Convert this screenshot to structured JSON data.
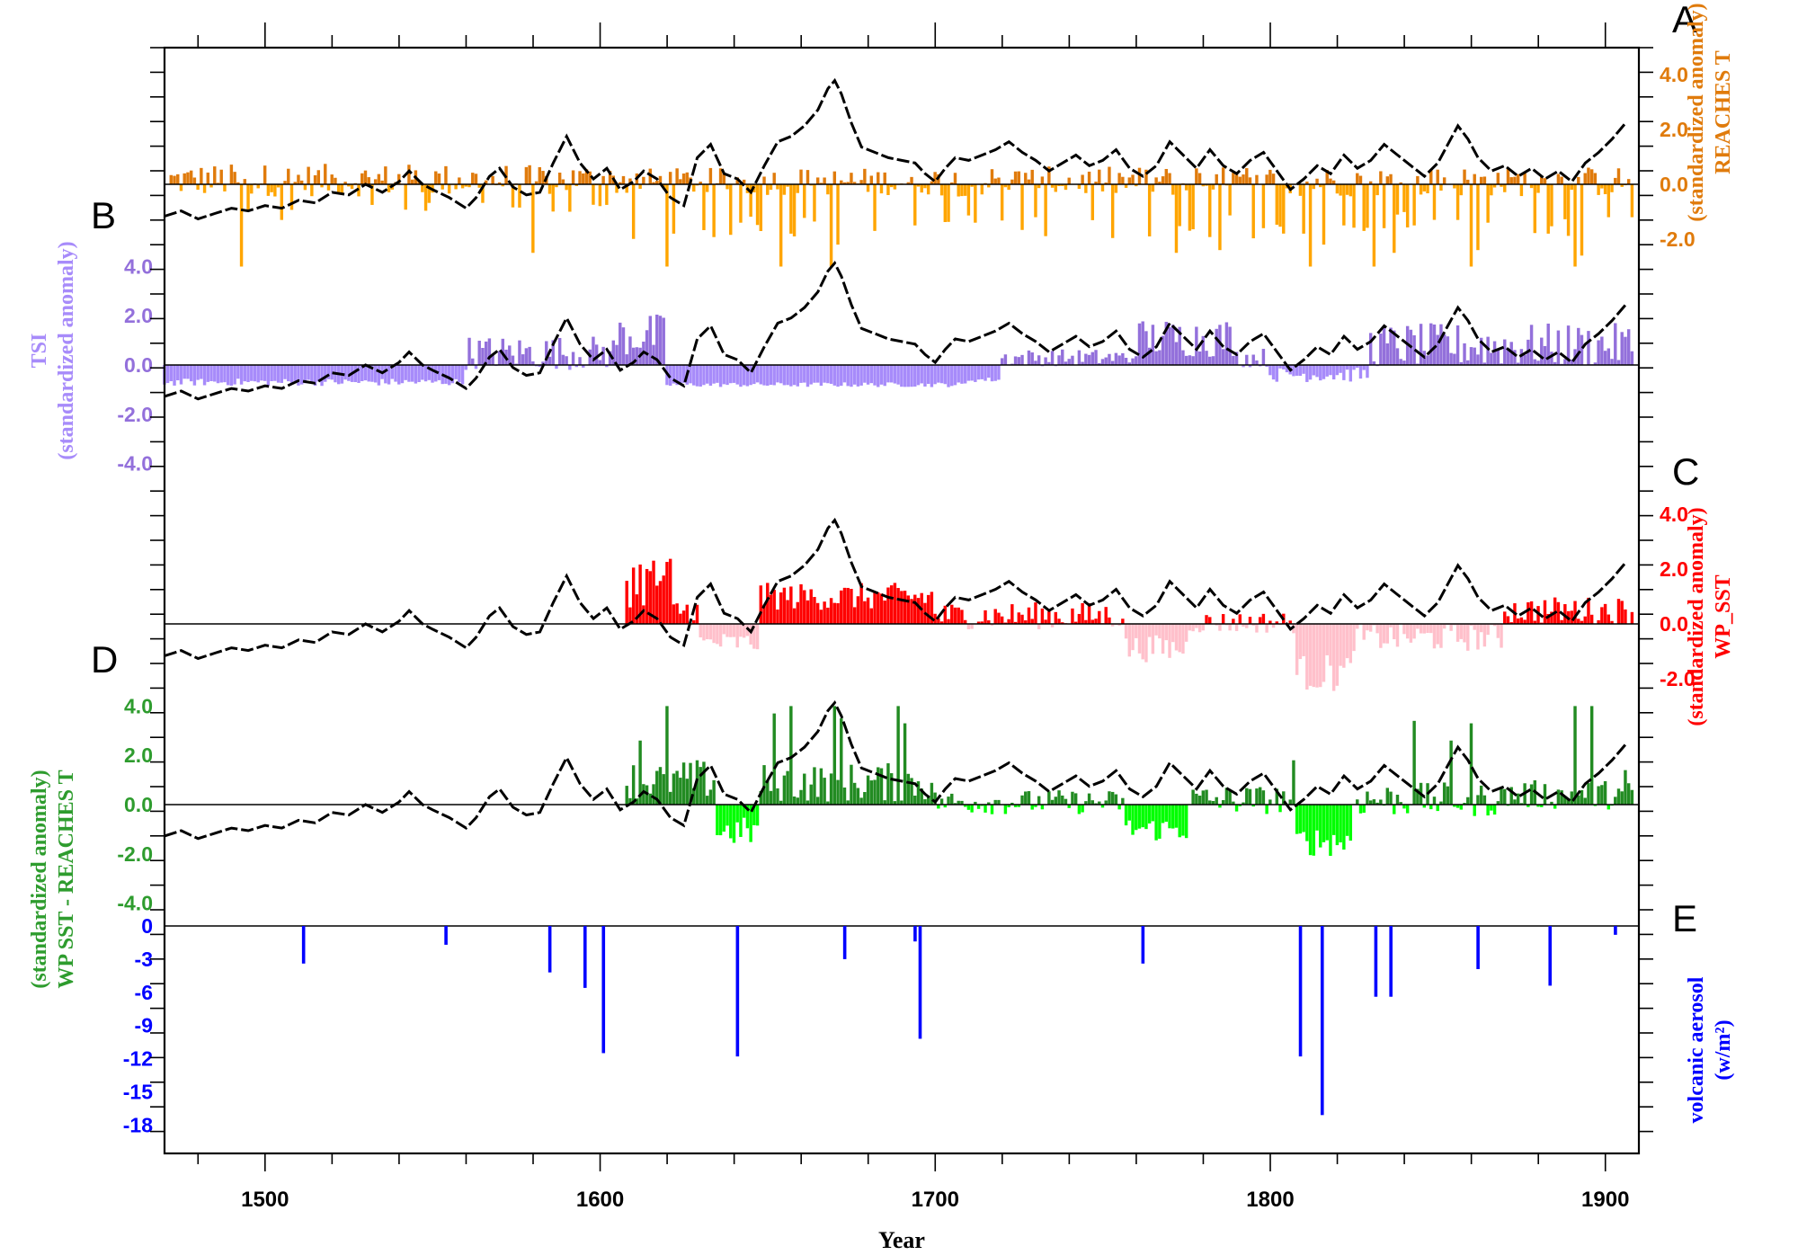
{
  "figure": {
    "x_axis_label": "Year",
    "x_ticks": [
      1500,
      1600,
      1700,
      1800,
      1900
    ],
    "x_range": [
      1470,
      1910
    ]
  },
  "colors": {
    "reaches_pos": "#e07b0c",
    "reaches_neg": "#ffa500",
    "tsi_pos": "#9370db",
    "tsi_neg": "#a78bfa",
    "sst_pos": "#ff0000",
    "sst_neg": "#ffc0cb",
    "diff_pos": "#228b22",
    "diff_neg": "#00ff00",
    "volcanic": "#0000ff",
    "curve": "#000000"
  },
  "chart_data": [
    {
      "panel": "A",
      "type": "bar",
      "series_label": "REACHES T",
      "unit_label": "(standardized anomaly)",
      "axis_side": "right",
      "ticks": [
        "4.0",
        "2.0",
        "0.0",
        "-2.0"
      ],
      "tick_values": [
        4,
        2,
        0,
        -2
      ],
      "ylim": [
        -3.1,
        6.4
      ],
      "x_start": 1472,
      "x_end": 1909,
      "segments": [
        [
          1472,
          1610,
          0.15,
          0.6,
          -1.2,
          0.5
        ],
        [
          1610,
          1700,
          0.1,
          0.5,
          -2.0,
          0.6
        ],
        [
          1700,
          1909,
          0.1,
          0.55,
          -2.0,
          0.6
        ]
      ],
      "events": [
        [
          1493,
          -3.0
        ],
        [
          1505,
          -1.3
        ],
        [
          1580,
          -2.5
        ],
        [
          1591,
          -1.0
        ],
        [
          1620,
          -3.0
        ],
        [
          1622,
          -1.8
        ],
        [
          1642,
          -1.4
        ],
        [
          1654,
          -3.0
        ],
        [
          1657,
          -1.8
        ],
        [
          1669,
          -3.0
        ],
        [
          1671,
          -2.2
        ],
        [
          1682,
          -1.7
        ],
        [
          1694,
          -1.5
        ],
        [
          1712,
          -1.4
        ],
        [
          1730,
          -1.2
        ],
        [
          1764,
          -1.9
        ],
        [
          1772,
          -2.5
        ],
        [
          1785,
          -2.4
        ],
        [
          1798,
          -1.6
        ],
        [
          1810,
          -1.8
        ],
        [
          1812,
          -3.0
        ],
        [
          1816,
          -2.2
        ],
        [
          1822,
          -1.5
        ],
        [
          1828,
          -1.7
        ],
        [
          1831,
          -3.0
        ],
        [
          1834,
          -1.6
        ],
        [
          1837,
          -2.5
        ],
        [
          1843,
          -1.5
        ],
        [
          1856,
          -1.3
        ],
        [
          1860,
          -3.0
        ],
        [
          1862,
          -2.4
        ],
        [
          1865,
          -1.4
        ],
        [
          1883,
          -1.8
        ],
        [
          1891,
          -3.0
        ],
        [
          1893,
          -2.6
        ],
        [
          1901,
          -1.2
        ],
        [
          1908,
          -1.2
        ]
      ]
    },
    {
      "panel": "B",
      "type": "bar",
      "series_label": "TSI",
      "unit_label": "(standardized anomaly)",
      "axis_side": "left",
      "ticks": [
        "4.0",
        "2.0",
        "0.0",
        "-2.0",
        "-4.0"
      ],
      "tick_values": [
        4,
        2,
        0,
        -2,
        -4
      ],
      "ylim": [
        -4.8,
        4.8
      ],
      "x_start": 1470,
      "x_end": 1909,
      "segments": [
        [
          1470,
          1560,
          -0.7,
          0.15,
          0,
          0
        ],
        [
          1560,
          1605,
          0.5,
          0.7,
          0,
          0
        ],
        [
          1605,
          1620,
          1.2,
          0.9,
          0,
          0
        ],
        [
          1620,
          1710,
          -0.8,
          0.1,
          0,
          0
        ],
        [
          1710,
          1720,
          -0.6,
          0.1,
          0,
          0
        ],
        [
          1720,
          1760,
          0.3,
          0.35,
          0,
          0
        ],
        [
          1760,
          1790,
          1.1,
          0.8,
          0,
          0
        ],
        [
          1790,
          1800,
          0.3,
          0.4,
          0,
          0
        ],
        [
          1800,
          1830,
          -0.4,
          0.3,
          0,
          0
        ],
        [
          1830,
          1909,
          0.8,
          0.9,
          0,
          0
        ]
      ]
    },
    {
      "panel": "C",
      "type": "bar",
      "series_label": "WP_SST",
      "unit_label": "(standardized anomaly)",
      "axis_side": "right",
      "ticks": [
        "4.0",
        "2.0",
        "0.0",
        "-2.0"
      ],
      "tick_values": [
        4,
        2,
        0,
        -2
      ],
      "ylim": [
        -3.1,
        6.4
      ],
      "x_start": 1608,
      "x_end": 1909,
      "segments": [
        [
          1608,
          1622,
          1.6,
          1.0,
          0,
          0
        ],
        [
          1622,
          1630,
          0.5,
          0.5,
          0,
          0
        ],
        [
          1630,
          1648,
          -0.7,
          0.4,
          0,
          0
        ],
        [
          1648,
          1700,
          1.0,
          0.5,
          0,
          0
        ],
        [
          1700,
          1757,
          0.3,
          0.5,
          0,
          0
        ],
        [
          1757,
          1776,
          -0.9,
          0.5,
          0,
          0
        ],
        [
          1776,
          1808,
          0.05,
          0.4,
          0,
          0
        ],
        [
          1808,
          1825,
          -1.8,
          0.7,
          0,
          0
        ],
        [
          1825,
          1870,
          -0.5,
          0.5,
          0,
          0
        ],
        [
          1870,
          1909,
          0.5,
          0.5,
          0,
          0
        ]
      ]
    },
    {
      "panel": "D",
      "type": "bar",
      "series_label": "WP SST - REACHES T",
      "unit_label": "(standardized anomaly)",
      "axis_side": "left",
      "ticks": [
        "4.0",
        "2.0",
        "0.0",
        "-2.0",
        "-4.0"
      ],
      "tick_values": [
        4,
        2,
        0,
        -2,
        -4
      ],
      "ylim": [
        -4.8,
        4.8
      ],
      "x_start": 1608,
      "x_end": 1909,
      "segments": [
        [
          1608,
          1635,
          1.0,
          0.8,
          0,
          0
        ],
        [
          1635,
          1648,
          -1.1,
          0.6,
          0,
          0
        ],
        [
          1648,
          1700,
          0.9,
          0.8,
          0,
          0
        ],
        [
          1700,
          1757,
          0.1,
          0.5,
          0,
          0
        ],
        [
          1757,
          1776,
          -1.0,
          0.5,
          0,
          0
        ],
        [
          1776,
          1808,
          0.2,
          0.6,
          0,
          0
        ],
        [
          1808,
          1825,
          -1.5,
          0.6,
          0,
          0
        ],
        [
          1825,
          1870,
          0.2,
          0.7,
          0,
          0
        ],
        [
          1870,
          1909,
          0.4,
          0.6,
          0,
          0
        ]
      ],
      "events": [
        [
          1620,
          4.0
        ],
        [
          1612,
          2.6
        ],
        [
          1629,
          1.8
        ],
        [
          1652,
          3.7
        ],
        [
          1657,
          4.0
        ],
        [
          1670,
          4.0
        ],
        [
          1672,
          3.5
        ],
        [
          1689,
          4.0
        ],
        [
          1691,
          3.3
        ],
        [
          1807,
          1.8
        ],
        [
          1843,
          3.4
        ],
        [
          1854,
          2.6
        ],
        [
          1860,
          3.3
        ],
        [
          1891,
          4.0
        ],
        [
          1896,
          4.0
        ],
        [
          1906,
          1.4
        ]
      ]
    },
    {
      "panel": "E",
      "type": "bar",
      "series_label": "volcanic aerosol",
      "unit_label": "(w/m²)",
      "axis_side": "left",
      "ticks": [
        "0",
        "-3",
        "-6",
        "-9",
        "-12",
        "-15",
        "-18"
      ],
      "tick_values": [
        0,
        -3,
        -6,
        -9,
        -12,
        -15,
        -18
      ],
      "ylim": [
        -19.4,
        0
      ],
      "events": [
        [
          1511.5,
          -3.4
        ],
        [
          1554,
          -1.7
        ],
        [
          1585,
          -4.2
        ],
        [
          1595.5,
          -5.6
        ],
        [
          1601,
          -11.5
        ],
        [
          1641,
          -11.8
        ],
        [
          1673,
          -3.0
        ],
        [
          1694,
          -1.4
        ],
        [
          1695.5,
          -10.2
        ],
        [
          1762,
          -3.4
        ],
        [
          1809,
          -11.8
        ],
        [
          1815.5,
          -17.1
        ],
        [
          1831.5,
          -6.4
        ],
        [
          1836,
          -6.4
        ],
        [
          1862,
          -3.9
        ],
        [
          1883.5,
          -5.4
        ],
        [
          1903,
          -0.8
        ]
      ]
    }
  ],
  "curve": {
    "description_x": "shared 11-yr style smoothed temperature curve drawn over panels A–D",
    "x": [
      1470,
      1475,
      1480,
      1485,
      1490,
      1495,
      1500,
      1505,
      1510,
      1515,
      1520,
      1525,
      1530,
      1535,
      1540,
      1543,
      1547,
      1550,
      1555,
      1560,
      1563,
      1567,
      1570,
      1574,
      1578,
      1582,
      1586,
      1590,
      1594,
      1598,
      1602,
      1606,
      1610,
      1613,
      1617,
      1621,
      1625,
      1629,
      1633,
      1637,
      1641,
      1645,
      1649,
      1653,
      1657,
      1661,
      1665,
      1668,
      1670,
      1672,
      1675,
      1678,
      1682,
      1686,
      1690,
      1694,
      1697,
      1700,
      1703,
      1706,
      1710,
      1714,
      1718,
      1722,
      1726,
      1730,
      1734,
      1738,
      1742,
      1746,
      1750,
      1754,
      1758,
      1762,
      1766,
      1770,
      1774,
      1778,
      1782,
      1786,
      1790,
      1794,
      1798,
      1802,
      1806,
      1810,
      1814,
      1818,
      1822,
      1826,
      1830,
      1834,
      1838,
      1842,
      1846,
      1850,
      1853,
      1856,
      1859,
      1862,
      1866,
      1870,
      1874,
      1878,
      1882,
      1886,
      1890,
      1894,
      1898,
      1902,
      1906
    ],
    "y": [
      -1.2,
      -1.0,
      -1.3,
      -1.1,
      -0.9,
      -1.0,
      -0.8,
      -0.9,
      -0.6,
      -0.7,
      -0.3,
      -0.4,
      0.0,
      -0.3,
      0.1,
      0.5,
      0.0,
      -0.2,
      -0.5,
      -0.9,
      -0.5,
      0.3,
      0.6,
      -0.1,
      -0.4,
      -0.3,
      0.8,
      1.8,
      0.8,
      0.2,
      0.6,
      -0.2,
      0.1,
      0.5,
      0.2,
      -0.5,
      -0.8,
      1.0,
      1.5,
      0.4,
      0.2,
      -0.3,
      0.7,
      1.6,
      1.8,
      2.2,
      2.8,
      3.6,
      3.9,
      3.4,
      2.3,
      1.4,
      1.2,
      1.0,
      0.9,
      0.8,
      0.4,
      0.1,
      0.6,
      1.0,
      0.9,
      1.1,
      1.3,
      1.6,
      1.2,
      0.9,
      0.5,
      0.8,
      1.1,
      0.7,
      0.9,
      1.3,
      0.6,
      0.3,
      0.7,
      1.6,
      1.1,
      0.6,
      1.3,
      0.7,
      0.4,
      0.9,
      1.2,
      0.5,
      -0.2,
      0.2,
      0.7,
      0.4,
      1.1,
      0.6,
      0.9,
      1.5,
      1.1,
      0.7,
      0.3,
      0.8,
      1.5,
      2.2,
      1.7,
      1.0,
      0.5,
      0.7,
      0.3,
      0.6,
      0.2,
      0.5,
      0.1,
      0.8,
      1.2,
      1.7,
      2.3
    ]
  }
}
